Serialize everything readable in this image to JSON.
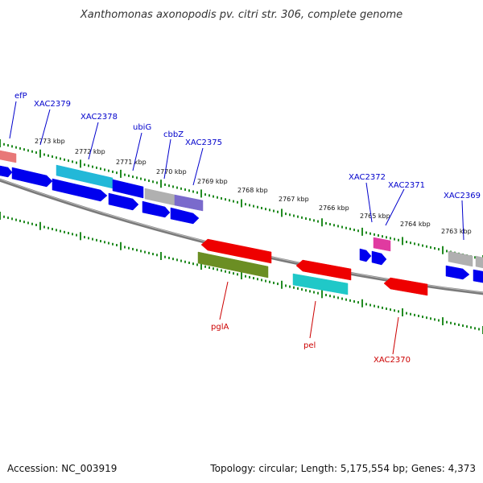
{
  "title": "Xanthomonas axonopodis pv. citri str. 306, complete genome",
  "footer": {
    "accession": "Accession: NC_003919",
    "topology": "Topology: circular; Length: 5,175,554 bp; Genes: 4,373"
  },
  "colors": {
    "backbone": "#7a7a7a",
    "tick": "#228b22",
    "label_top": "#0000cc",
    "label_bottom": "#cc0000"
  },
  "kbp_labels": [
    "2773 kbp",
    "2772 kbp",
    "2771 kbp",
    "2770 kbp",
    "2769 kbp",
    "2768 kbp",
    "2767 kbp",
    "2766 kbp",
    "2765 kbp",
    "2764 kbp",
    "2763 kbp"
  ],
  "top_labels": [
    "efP",
    "XAC2379",
    "XAC2378",
    "ubiG",
    "cbbZ",
    "XAC2375",
    "XAC2372",
    "XAC2371",
    "XAC2369"
  ],
  "bottom_labels": [
    "pglA",
    "pel",
    "XAC2370"
  ],
  "features": [
    {
      "id": "f1",
      "color": "#e87878"
    },
    {
      "id": "f2",
      "color": "#0000ee"
    },
    {
      "id": "f3",
      "color": "#0000ee"
    },
    {
      "id": "f4",
      "color": "#22b8d8"
    },
    {
      "id": "f5",
      "color": "#0000ee"
    },
    {
      "id": "f6",
      "color": "#0000ee"
    },
    {
      "id": "f7",
      "color": "#b0b0b0"
    },
    {
      "id": "f8",
      "color": "#0000ee"
    },
    {
      "id": "f9",
      "color": "#7a6acc"
    },
    {
      "id": "f10",
      "color": "#0000ee"
    },
    {
      "id": "f11",
      "color": "#0000ee"
    },
    {
      "id": "f12",
      "color": "#0000ee"
    },
    {
      "id": "f13",
      "color": "#e03aa0"
    },
    {
      "id": "f14",
      "color": "#0000ee"
    },
    {
      "id": "f15",
      "color": "#0000ee"
    },
    {
      "id": "f16",
      "color": "#b0b0b0"
    },
    {
      "id": "f17",
      "color": "#0000ee"
    },
    {
      "id": "f18",
      "color": "#b0b0b0"
    },
    {
      "id": "f19",
      "color": "#0000ee"
    },
    {
      "id": "f20",
      "color": "#ee0000"
    },
    {
      "id": "f21",
      "color": "#6b8e23"
    },
    {
      "id": "f22",
      "color": "#ee0000"
    },
    {
      "id": "f23",
      "color": "#20c8c8"
    },
    {
      "id": "f24",
      "color": "#ee0000"
    }
  ]
}
